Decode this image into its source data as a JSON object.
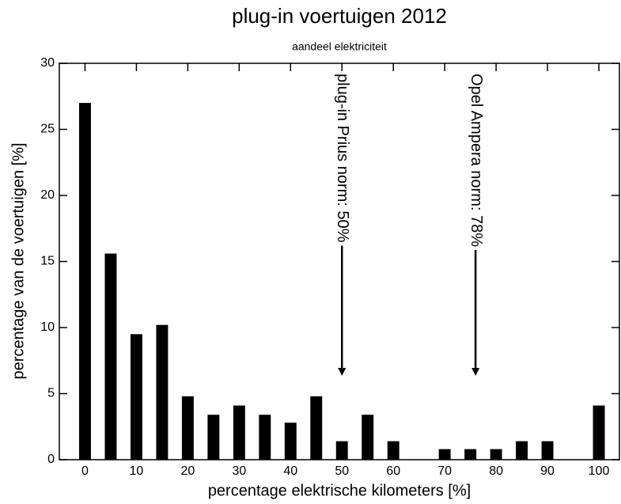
{
  "chart_data": {
    "type": "bar",
    "title": "plug-in voertuigen 2012",
    "subtitle": "aandeel elektriciteit",
    "x_label": "percentage elektrische kilometers [%]",
    "y_label": "percentage van de voertuigen [%]",
    "x": [
      0,
      5,
      10,
      15,
      20,
      25,
      30,
      35,
      40,
      45,
      50,
      55,
      60,
      65,
      70,
      75,
      80,
      85,
      90,
      95,
      100
    ],
    "values": [
      27,
      15.6,
      9.5,
      10.2,
      4.8,
      3.4,
      4.1,
      3.4,
      2.8,
      4.8,
      1.4,
      3.4,
      1.4,
      0,
      0.8,
      0.8,
      0.8,
      1.4,
      1.4,
      0,
      4.1
    ],
    "color": "#000000",
    "xlim": [
      -5,
      104
    ],
    "xticks": [
      0,
      10,
      20,
      30,
      40,
      50,
      60,
      70,
      80,
      90,
      100
    ],
    "ylim": [
      0,
      30
    ],
    "yticks": [
      0,
      5,
      10,
      15,
      20,
      25,
      30
    ],
    "grid": false,
    "annotations": [
      {
        "text": "plug-in Prius norm: 50%",
        "x": 50
      },
      {
        "text": "Opel Ampera norm: 78%",
        "x": 76
      }
    ]
  }
}
